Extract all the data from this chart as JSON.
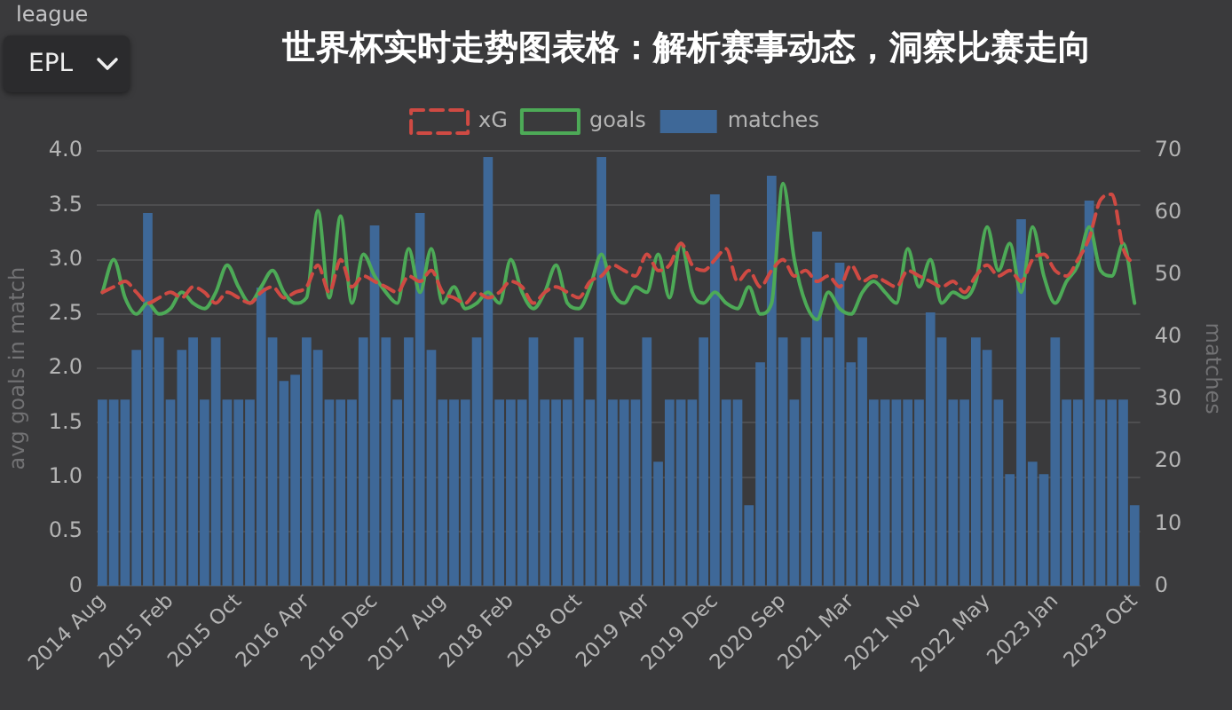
{
  "chart_data": {
    "type": "line",
    "title": "世界杯实时走势图表格：解析赛事动态，洞察比赛走向",
    "annotations": [
      "league",
      "EPL"
    ],
    "categories": [
      "2014 Aug",
      null,
      null,
      null,
      null,
      null,
      "2015 Feb",
      null,
      null,
      null,
      null,
      null,
      "2015 Oct",
      null,
      null,
      null,
      null,
      null,
      "2016 Apr",
      null,
      null,
      null,
      null,
      null,
      "2016 Dec",
      null,
      null,
      null,
      null,
      null,
      "2017 Aug",
      null,
      null,
      null,
      null,
      null,
      "2018 Feb",
      null,
      null,
      null,
      null,
      null,
      "2018 Oct",
      null,
      null,
      null,
      null,
      null,
      "2019 Apr",
      null,
      null,
      null,
      null,
      null,
      "2019 Dec",
      null,
      null,
      null,
      null,
      null,
      "2020 Sep",
      null,
      null,
      null,
      null,
      null,
      "2021 Mar",
      null,
      null,
      null,
      null,
      null,
      "2021 Nov",
      null,
      null,
      null,
      null,
      null,
      "2022 May",
      null,
      null,
      null,
      null,
      null,
      "2023 Jan",
      null,
      null,
      null,
      null,
      null,
      null,
      "2023 Oct"
    ],
    "series": [
      {
        "name": "xG",
        "color": "#cf4a43",
        "line_style": "dashed",
        "values": [
          2.7,
          2.75,
          2.8,
          2.7,
          2.6,
          2.65,
          2.7,
          2.65,
          2.75,
          2.7,
          2.6,
          2.7,
          2.65,
          2.6,
          2.7,
          2.75,
          2.65,
          2.7,
          2.75,
          2.95,
          2.7,
          3.0,
          2.75,
          2.85,
          2.8,
          2.75,
          2.7,
          2.85,
          2.8,
          2.9,
          2.7,
          2.65,
          2.6,
          2.7,
          2.65,
          2.7,
          2.8,
          2.75,
          2.6,
          2.7,
          2.75,
          2.7,
          2.65,
          2.8,
          2.85,
          2.95,
          2.9,
          2.85,
          3.05,
          2.9,
          2.95,
          3.15,
          2.95,
          2.9,
          3.0,
          3.1,
          2.8,
          2.9,
          2.75,
          2.9,
          3.0,
          2.85,
          2.9,
          2.8,
          2.85,
          2.75,
          2.95,
          2.8,
          2.85,
          2.8,
          2.75,
          2.9,
          2.85,
          2.8,
          2.75,
          2.8,
          2.7,
          2.85,
          2.95,
          2.85,
          2.9,
          2.8,
          3.0,
          3.05,
          2.9,
          2.85,
          3.0,
          3.2,
          3.55,
          3.6,
          3.1,
          2.95
        ]
      },
      {
        "name": "goals",
        "color": "#4daa57",
        "line_style": "solid",
        "values": [
          2.7,
          3.0,
          2.65,
          2.5,
          2.6,
          2.5,
          2.55,
          2.7,
          2.6,
          2.55,
          2.7,
          2.95,
          2.75,
          2.6,
          2.75,
          2.9,
          2.7,
          2.6,
          2.65,
          3.45,
          2.65,
          3.4,
          2.6,
          3.05,
          2.85,
          2.7,
          2.6,
          3.1,
          2.7,
          3.1,
          2.6,
          2.75,
          2.55,
          2.6,
          2.7,
          2.6,
          3.0,
          2.7,
          2.55,
          2.7,
          2.95,
          2.6,
          2.55,
          2.75,
          3.05,
          2.7,
          2.6,
          2.75,
          2.7,
          3.05,
          2.65,
          3.15,
          2.7,
          2.6,
          2.7,
          2.6,
          2.55,
          2.75,
          2.5,
          2.6,
          3.7,
          3.0,
          2.6,
          2.45,
          2.7,
          2.55,
          2.5,
          2.7,
          2.8,
          2.7,
          2.6,
          3.1,
          2.75,
          3.0,
          2.6,
          2.7,
          2.65,
          2.8,
          3.3,
          2.9,
          3.15,
          2.7,
          3.3,
          2.85,
          2.6,
          2.8,
          2.95,
          3.3,
          2.9,
          2.85,
          3.15,
          2.6
        ]
      },
      {
        "name": "matches",
        "type": "bar",
        "axis": "y2",
        "color": "#3e6898",
        "values": [
          30,
          30,
          30,
          38,
          60,
          40,
          30,
          38,
          40,
          30,
          40,
          30,
          30,
          30,
          48,
          40,
          33,
          34,
          40,
          38,
          30,
          30,
          30,
          40,
          58,
          40,
          30,
          40,
          60,
          38,
          30,
          30,
          30,
          40,
          69,
          30,
          30,
          30,
          40,
          30,
          30,
          30,
          40,
          30,
          69,
          30,
          30,
          30,
          40,
          20,
          30,
          30,
          30,
          40,
          63,
          30,
          30,
          13,
          36,
          66,
          40,
          30,
          40,
          57,
          40,
          52,
          36,
          40,
          30,
          30,
          30,
          30,
          30,
          44,
          40,
          30,
          30,
          40,
          38,
          30,
          18,
          59,
          20,
          18,
          40,
          30,
          30,
          62,
          30,
          30,
          30,
          13
        ]
      }
    ],
    "ylabel": "avg goals in match",
    "y2label": "matches",
    "ylim": [
      0,
      4
    ],
    "yticks": [
      0,
      0.5,
      {
        "value": 1,
        "label": "1.0"
      },
      1.5,
      {
        "value": 2,
        "label": "2.0"
      },
      2.5,
      {
        "value": 3,
        "label": "3.0"
      },
      3.5,
      {
        "value": 4,
        "label": "4.0"
      }
    ],
    "y2lim": [
      0,
      70
    ],
    "y2ticks": [
      0,
      10,
      20,
      30,
      40,
      50,
      60,
      70
    ],
    "grid": "y",
    "legend": "top",
    "marker": "none"
  }
}
